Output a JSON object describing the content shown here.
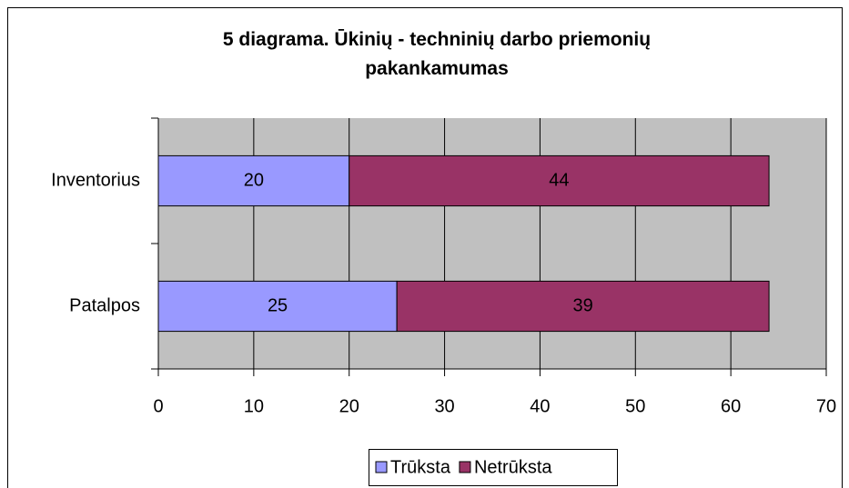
{
  "chart_data": {
    "type": "bar",
    "orientation": "horizontal",
    "stacked": true,
    "title": "5 diagrama. Ūkinių - techninių darbo priemonių pakankamumas",
    "categories": [
      "Inventorius",
      "Patalpos"
    ],
    "series": [
      {
        "name": "Trūksta",
        "color": "#9999ff",
        "values": [
          20,
          25
        ]
      },
      {
        "name": "Netrūksta",
        "color": "#993366",
        "values": [
          44,
          39
        ]
      }
    ],
    "xlim": [
      0,
      70
    ],
    "xticks": [
      0,
      10,
      20,
      30,
      40,
      50,
      60,
      70
    ],
    "grid": true,
    "legend": "bottom"
  }
}
